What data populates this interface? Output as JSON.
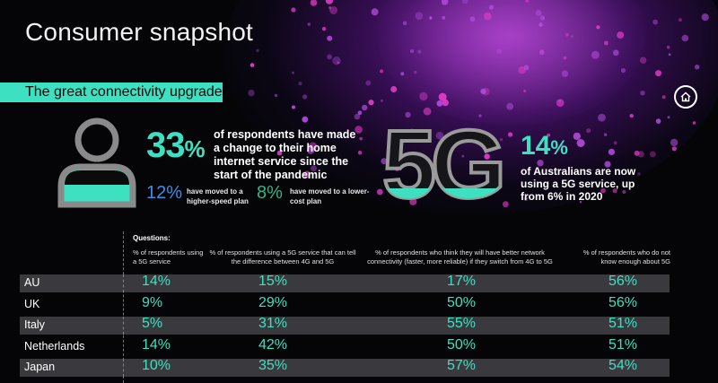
{
  "page_title": "Consumer snapshot",
  "banner": "The great connectivity upgrade",
  "icons": {
    "home": "home-icon",
    "person": "person-icon"
  },
  "colors": {
    "accent": "#3ee0c2",
    "blue": "#3b8ee8",
    "green": "#2fb58a",
    "purple_glow": "#9628be"
  },
  "stat_main": {
    "value": "33",
    "unit": "%",
    "text": "of respondents have made a change to their home internet service since the start of the pandemic"
  },
  "stat_speed": {
    "value": "12%",
    "text": "have moved to a higher-speed plan"
  },
  "stat_cost": {
    "value": "8%",
    "text": "have moved to a lower-cost plan"
  },
  "fiveg_label": "5G",
  "stat_5g": {
    "value": "14",
    "unit": "%",
    "text": "of Australians are now using a 5G service, up from 6% in 2020"
  },
  "table": {
    "questions_label": "Questions:",
    "headers": [
      "% of respondents using a 5G service",
      "% of respondents using a 5G service that can tell the difference between 4G and 5G",
      "% of respondents who think they will have better network connectivity (faster, more reliable) if they switch from 4G to 5G",
      "% of respondents who do not know enough about 5G"
    ],
    "rows": [
      {
        "country": "AU",
        "values": [
          "14%",
          "15%",
          "17%",
          "56%"
        ]
      },
      {
        "country": "UK",
        "values": [
          "9%",
          "29%",
          "50%",
          "56%"
        ]
      },
      {
        "country": "Italy",
        "values": [
          "5%",
          "31%",
          "55%",
          "51%"
        ]
      },
      {
        "country": "Netherlands",
        "values": [
          "14%",
          "42%",
          "50%",
          "51%"
        ]
      },
      {
        "country": "Japan",
        "values": [
          "10%",
          "35%",
          "57%",
          "54%"
        ]
      }
    ]
  }
}
